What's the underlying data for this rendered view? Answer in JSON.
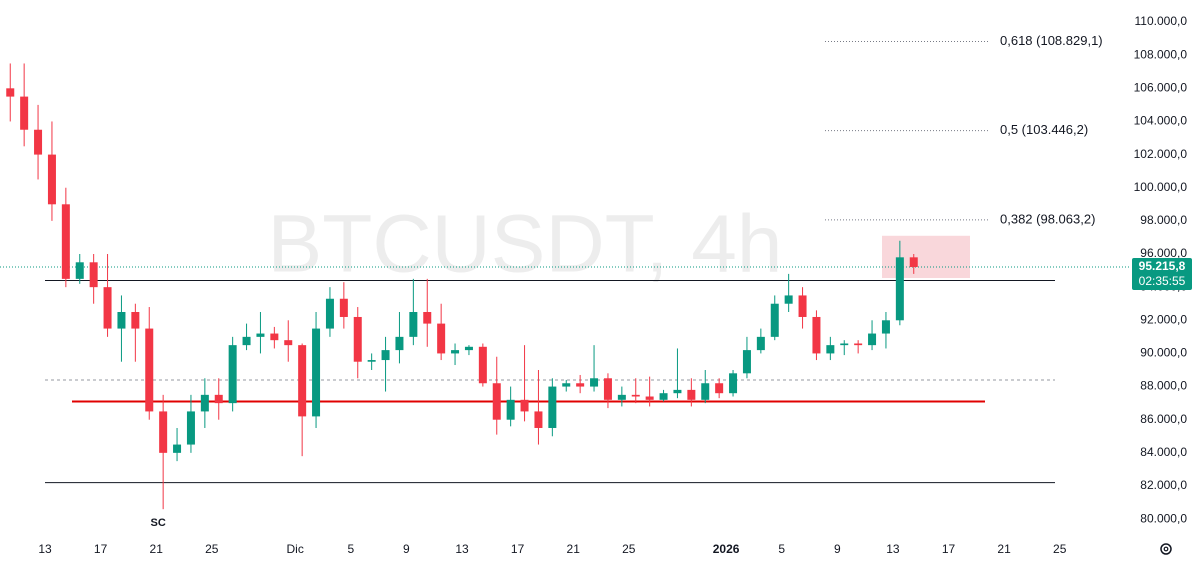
{
  "chart_data": {
    "type": "candlestick",
    "title": "BTCUSDT, 4h",
    "categories": [
      null,
      null,
      null,
      "13",
      null,
      null,
      null,
      "17",
      null,
      null,
      null,
      "21",
      null,
      null,
      null,
      "25",
      null,
      null,
      null,
      null,
      null,
      "Dic",
      null,
      null,
      null,
      "5",
      null,
      null,
      null,
      "9",
      null,
      null,
      null,
      "13",
      null,
      null,
      null,
      "17",
      null,
      null,
      null,
      "21",
      null,
      null,
      null,
      "25",
      null,
      null,
      null,
      null,
      null,
      null,
      "2026",
      null,
      null,
      null,
      "5",
      null,
      null,
      null,
      "9",
      null,
      null,
      null,
      "13",
      null,
      null,
      null,
      "17",
      null,
      null,
      null,
      "21",
      null,
      null,
      null,
      "25",
      null
    ],
    "open": [
      106000,
      105500,
      103500,
      102000,
      99000,
      94500,
      95500,
      94000,
      91500,
      92500,
      91500,
      86500,
      84000,
      84500,
      86500,
      87500,
      87000,
      90500,
      91000,
      91200,
      90800,
      90500,
      86200,
      91500,
      93300,
      92200,
      89500,
      89600,
      90200,
      91000,
      92500,
      91800,
      90000,
      90200,
      90400,
      88200,
      86000,
      87200,
      86500,
      85500,
      88000,
      88200,
      88000,
      88500,
      87200,
      87500,
      87400,
      87200,
      87600,
      87800,
      87200,
      88200,
      87600,
      88800,
      90200,
      91000,
      93000,
      93500,
      92200,
      90000,
      90500,
      90600,
      90500,
      91200,
      92000,
      95800,
      null,
      null,
      null,
      null,
      null,
      null,
      null,
      null,
      null,
      null,
      null,
      null
    ],
    "high": [
      107500,
      107500,
      105000,
      104000,
      100000,
      96000,
      96000,
      96000,
      93500,
      93000,
      92800,
      87500,
      85500,
      87500,
      88500,
      88500,
      91000,
      91800,
      92500,
      91600,
      92000,
      90600,
      92500,
      94000,
      94300,
      92800,
      90000,
      91000,
      92500,
      94500,
      94500,
      93000,
      90600,
      90500,
      90600,
      89800,
      88000,
      90500,
      89000,
      88500,
      88400,
      88700,
      90500,
      88800,
      88000,
      88500,
      88600,
      87800,
      90300,
      88500,
      89000,
      88500,
      89000,
      91000,
      91500,
      93500,
      94800,
      94000,
      92600,
      91000,
      90800,
      90800,
      92000,
      92500,
      96800,
      96000,
      null,
      null,
      null,
      null,
      null,
      null,
      null,
      null,
      null,
      null,
      null,
      null
    ],
    "low": [
      104000,
      102500,
      100500,
      98000,
      94000,
      94200,
      93000,
      91000,
      89500,
      89500,
      86000,
      80600,
      83500,
      84000,
      85500,
      86000,
      86500,
      90200,
      90000,
      90300,
      89500,
      83800,
      85500,
      91000,
      91500,
      88500,
      89000,
      87700,
      89400,
      90500,
      90400,
      89600,
      89300,
      89900,
      88000,
      85100,
      85600,
      85900,
      84500,
      85000,
      87700,
      87600,
      87700,
      86700,
      86800,
      87000,
      86800,
      87100,
      87300,
      86800,
      87000,
      87300,
      87400,
      88500,
      90000,
      90800,
      92500,
      91500,
      89600,
      89600,
      89900,
      90000,
      90200,
      90300,
      91700,
      94800,
      null,
      null,
      null,
      null,
      null,
      null,
      null,
      null,
      null,
      null,
      null,
      null
    ],
    "close": [
      105500,
      103500,
      102000,
      99000,
      94500,
      95500,
      94000,
      91500,
      92500,
      91500,
      86500,
      84000,
      84500,
      86500,
      87500,
      87000,
      90500,
      91000,
      91200,
      90800,
      90500,
      86200,
      91500,
      93300,
      92200,
      89500,
      89600,
      90200,
      91000,
      92500,
      91800,
      90000,
      90200,
      90400,
      88200,
      86000,
      87200,
      86500,
      85500,
      88000,
      88200,
      88000,
      88500,
      87200,
      87500,
      87400,
      87200,
      87600,
      87800,
      87200,
      88200,
      87600,
      88800,
      90200,
      91000,
      93000,
      93500,
      92200,
      90000,
      90500,
      90600,
      90500,
      91200,
      92000,
      95800,
      95215.8,
      null,
      null,
      null,
      null,
      null,
      null,
      null,
      null,
      null,
      null,
      null,
      null
    ],
    "up_color": "#089981",
    "down_color": "#f23645",
    "ylim": [
      78740,
      111330
    ],
    "yticks": [
      {
        "value": 80000,
        "label": "80.000,0"
      },
      {
        "value": 82000,
        "label": "82.000,0"
      },
      {
        "value": 84000,
        "label": "84.000,0"
      },
      {
        "value": 86000,
        "label": "86.000,0"
      },
      {
        "value": 88000,
        "label": "88.000,0"
      },
      {
        "value": 90000,
        "label": "90.000,0"
      },
      {
        "value": 92000,
        "label": "92.000,0"
      },
      {
        "value": 94000,
        "label": "94.000,0"
      },
      {
        "value": 96000,
        "label": "96.000,0"
      },
      {
        "value": 98000,
        "label": "98.000,0"
      },
      {
        "value": 100000,
        "label": "100.000,0"
      },
      {
        "value": 102000,
        "label": "102.000,0"
      },
      {
        "value": 104000,
        "label": "104.000,0"
      },
      {
        "value": 106000,
        "label": "106.000,0"
      },
      {
        "value": 108000,
        "label": "108.000,0"
      },
      {
        "value": 110000,
        "label": "110.000,0"
      }
    ],
    "fib_levels": [
      {
        "value": 108829.1,
        "label": "0,618 (108.829,1)"
      },
      {
        "value": 103446.2,
        "label": "0,5 (103.446,2)"
      },
      {
        "value": 98063.2,
        "label": "0,382 (98.063,2)"
      }
    ],
    "levels": [
      {
        "value": 94400,
        "color": "#131722",
        "style": "solid"
      },
      {
        "value": 82200,
        "color": "#131722",
        "style": "solid"
      },
      {
        "value": 88400,
        "color": "#9598a1",
        "style": "dashed"
      },
      {
        "value": 87100,
        "color": "#e00000",
        "style": "thick"
      }
    ],
    "zone": [
      94550,
      97100
    ],
    "zone_color": "#f7c9cf",
    "last_price": {
      "value": 95215.8,
      "label": "95.215,8"
    },
    "countdown": "02:35:55",
    "annotation": "SC"
  }
}
